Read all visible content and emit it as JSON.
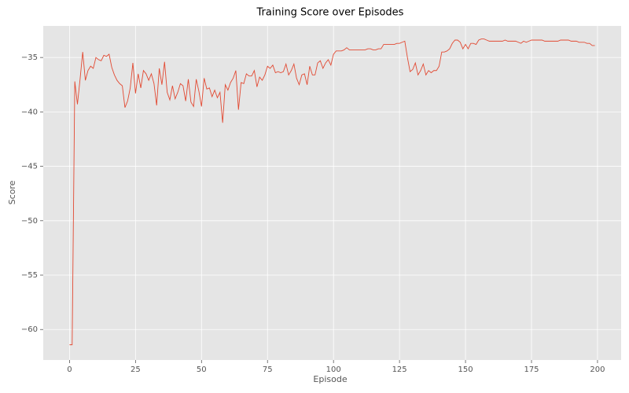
{
  "chart_data": {
    "type": "line",
    "title": "Training Score over Episodes",
    "xlabel": "Episode",
    "ylabel": "Score",
    "x": [
      0,
      1,
      2,
      3,
      4,
      5,
      6,
      7,
      8,
      9,
      10,
      11,
      12,
      13,
      14,
      15,
      16,
      17,
      18,
      19,
      20,
      21,
      22,
      23,
      24,
      25,
      26,
      27,
      28,
      29,
      30,
      31,
      32,
      33,
      34,
      35,
      36,
      37,
      38,
      39,
      40,
      41,
      42,
      43,
      44,
      45,
      46,
      47,
      48,
      49,
      50,
      51,
      52,
      53,
      54,
      55,
      56,
      57,
      58,
      59,
      60,
      61,
      62,
      63,
      64,
      65,
      66,
      67,
      68,
      69,
      70,
      71,
      72,
      73,
      74,
      75,
      76,
      77,
      78,
      79,
      80,
      81,
      82,
      83,
      84,
      85,
      86,
      87,
      88,
      89,
      90,
      91,
      92,
      93,
      94,
      95,
      96,
      97,
      98,
      99,
      100,
      101,
      102,
      103,
      104,
      105,
      106,
      107,
      108,
      109,
      110,
      111,
      112,
      113,
      114,
      115,
      116,
      117,
      118,
      119,
      120,
      121,
      122,
      123,
      124,
      125,
      126,
      127,
      128,
      129,
      130,
      131,
      132,
      133,
      134,
      135,
      136,
      137,
      138,
      139,
      140,
      141,
      142,
      143,
      144,
      145,
      146,
      147,
      148,
      149,
      150,
      151,
      152,
      153,
      154,
      155,
      156,
      157,
      158,
      159,
      160,
      161,
      162,
      163,
      164,
      165,
      166,
      167,
      168,
      169,
      170,
      171,
      172,
      173,
      174,
      175,
      176,
      177,
      178,
      179,
      180,
      181,
      182,
      183,
      184,
      185,
      186,
      187,
      188,
      189,
      190,
      191,
      192,
      193,
      194,
      195,
      196,
      197,
      198,
      199
    ],
    "series": [
      {
        "color": "#e24a33",
        "values": [
          -61.4,
          -61.4,
          -37.2,
          -39.3,
          -37.0,
          -34.5,
          -37.1,
          -36.2,
          -35.8,
          -36.0,
          -35.0,
          -35.2,
          -35.3,
          -34.8,
          -34.9,
          -34.7,
          -35.9,
          -36.6,
          -37.1,
          -37.4,
          -37.6,
          -39.6,
          -39.0,
          -37.8,
          -35.5,
          -38.3,
          -36.5,
          -37.8,
          -36.2,
          -36.5,
          -37.1,
          -36.5,
          -37.4,
          -39.4,
          -36.0,
          -37.5,
          -35.4,
          -38.2,
          -38.9,
          -37.6,
          -38.8,
          -38.2,
          -37.4,
          -37.6,
          -39.0,
          -37.0,
          -39.1,
          -39.5,
          -37.0,
          -38.1,
          -39.5,
          -36.9,
          -37.9,
          -37.8,
          -38.6,
          -38.0,
          -38.7,
          -38.2,
          -41.0,
          -37.5,
          -38.0,
          -37.3,
          -36.9,
          -36.2,
          -39.8,
          -37.3,
          -37.4,
          -36.5,
          -36.7,
          -36.7,
          -36.2,
          -37.7,
          -36.8,
          -37.1,
          -36.6,
          -35.8,
          -36.0,
          -35.7,
          -36.4,
          -36.3,
          -36.4,
          -36.3,
          -35.6,
          -36.6,
          -36.2,
          -35.6,
          -36.9,
          -37.5,
          -36.6,
          -36.5,
          -37.5,
          -35.8,
          -36.6,
          -36.6,
          -35.5,
          -35.3,
          -36.0,
          -35.5,
          -35.2,
          -35.7,
          -34.7,
          -34.4,
          -34.4,
          -34.4,
          -34.3,
          -34.1,
          -34.3,
          -34.3,
          -34.3,
          -34.3,
          -34.3,
          -34.3,
          -34.3,
          -34.2,
          -34.2,
          -34.3,
          -34.3,
          -34.2,
          -34.2,
          -33.8,
          -33.8,
          -33.8,
          -33.8,
          -33.8,
          -33.7,
          -33.7,
          -33.6,
          -33.5,
          -35.0,
          -36.3,
          -36.1,
          -35.5,
          -36.6,
          -36.2,
          -35.6,
          -36.6,
          -36.2,
          -36.4,
          -36.2,
          -36.2,
          -35.8,
          -34.5,
          -34.5,
          -34.4,
          -34.2,
          -33.7,
          -33.4,
          -33.4,
          -33.6,
          -34.2,
          -33.8,
          -34.2,
          -33.7,
          -33.7,
          -33.8,
          -33.4,
          -33.3,
          -33.3,
          -33.4,
          -33.5,
          -33.5,
          -33.5,
          -33.5,
          -33.5,
          -33.5,
          -33.4,
          -33.5,
          -33.5,
          -33.5,
          -33.5,
          -33.6,
          -33.7,
          -33.5,
          -33.6,
          -33.5,
          -33.4,
          -33.4,
          -33.4,
          -33.4,
          -33.4,
          -33.5,
          -33.5,
          -33.5,
          -33.5,
          -33.5,
          -33.5,
          -33.4,
          -33.4,
          -33.4,
          -33.4,
          -33.5,
          -33.5,
          -33.5,
          -33.6,
          -33.6,
          -33.6,
          -33.7,
          -33.7,
          -33.9,
          -33.9
        ]
      }
    ],
    "xlim": [
      -9.95,
      208.95
    ],
    "ylim": [
      -62.8,
      -32.1
    ],
    "xticks": [
      0,
      25,
      50,
      75,
      100,
      125,
      150,
      175,
      200
    ],
    "yticks": [
      {
        "value": -60,
        "label": "−60"
      },
      {
        "value": -55,
        "label": "−55"
      },
      {
        "value": -50,
        "label": "−50"
      },
      {
        "value": -45,
        "label": "−45"
      },
      {
        "value": -40,
        "label": "−40"
      },
      {
        "value": -35,
        "label": "−35"
      }
    ],
    "grid": true
  }
}
